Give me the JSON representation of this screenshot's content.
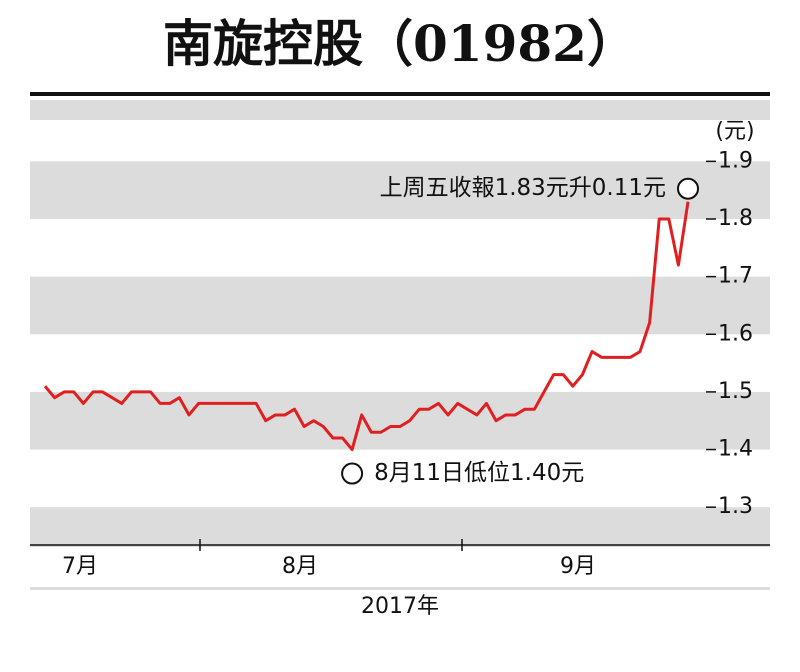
{
  "chart_data": {
    "type": "line",
    "title": "南旋控股（01982）",
    "unit_label": "(元)",
    "x_labels": [
      "7月",
      "8月",
      "9月"
    ],
    "xlabel": "2017年",
    "series": [
      {
        "name": "南旋控股",
        "color": "#e02020",
        "values": [
          1.51,
          1.49,
          1.5,
          1.5,
          1.48,
          1.5,
          1.5,
          1.49,
          1.48,
          1.5,
          1.5,
          1.5,
          1.48,
          1.48,
          1.49,
          1.46,
          1.48,
          1.48,
          1.48,
          1.48,
          1.48,
          1.48,
          1.48,
          1.45,
          1.46,
          1.46,
          1.47,
          1.44,
          1.45,
          1.44,
          1.42,
          1.42,
          1.4,
          1.46,
          1.43,
          1.43,
          1.44,
          1.44,
          1.45,
          1.47,
          1.47,
          1.48,
          1.46,
          1.48,
          1.47,
          1.46,
          1.48,
          1.45,
          1.46,
          1.46,
          1.47,
          1.47,
          1.5,
          1.53,
          1.53,
          1.51,
          1.53,
          1.57,
          1.56,
          1.56,
          1.56,
          1.56,
          1.57,
          1.62,
          1.8,
          1.8,
          1.72,
          1.83
        ]
      }
    ],
    "annotations": [
      "上周五收報1.83元升0.11元",
      "8月11日低位1.40元"
    ],
    "ylim": [
      1.25,
      1.97
    ],
    "yticks": [
      1.3,
      1.4,
      1.5,
      1.6,
      1.7,
      1.8,
      1.9
    ]
  }
}
